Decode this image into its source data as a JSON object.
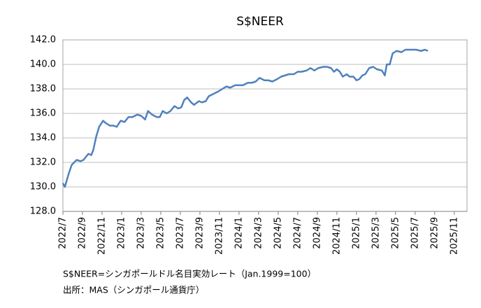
{
  "chart_data": {
    "type": "line",
    "title": "S$NEER",
    "notes": [
      "S$NEER=シンガポールドル名目実効レート（Jan.1999=100）",
      "出所：MAS（シンガポール通貨庁）"
    ],
    "x": [
      0,
      0.2,
      0.6,
      0.9,
      1.4,
      1.8,
      2.1,
      2.6,
      2.9,
      3.1,
      3.4,
      3.7,
      4.1,
      4.4,
      4.8,
      5.2,
      5.5,
      5.9,
      6.3,
      6.7,
      7.1,
      7.6,
      8,
      8.4,
      8.7,
      9.1,
      9.6,
      9.9,
      10.2,
      10.6,
      11,
      11.4,
      11.8,
      12.1,
      12.4,
      12.7,
      13.1,
      13.4,
      13.9,
      14.2,
      14.6,
      14.9,
      15.4,
      15.9,
      16.3,
      16.7,
      17.1,
      17.6,
      18,
      18.4,
      18.9,
      19.3,
      19.7,
      20.1,
      20.6,
      21,
      21.4,
      21.9,
      22.3,
      22.7,
      23.1,
      23.6,
      24,
      24.4,
      24.9,
      25.3,
      25.7,
      26.1,
      26.6,
      27,
      27.4,
      27.7,
      28,
      28.3,
      28.6,
      29,
      29.3,
      29.7,
      30,
      30.3,
      30.6,
      30.9,
      31.3,
      31.7,
      32.1,
      32.6,
      32.9,
      33.1,
      33.4,
      33.7,
      34.1,
      34.6,
      35,
      35.6,
      36.1,
      36.6,
      37,
      37.3
    ],
    "series": [
      {
        "name": "S$NEER",
        "color": "#4f81bd",
        "values": [
          130.3,
          130.0,
          131.1,
          131.8,
          132.2,
          132.1,
          132.2,
          132.7,
          132.6,
          133.0,
          134.1,
          134.9,
          135.4,
          135.2,
          135.0,
          135.0,
          134.9,
          135.4,
          135.3,
          135.7,
          135.7,
          135.9,
          135.8,
          135.5,
          136.2,
          135.9,
          135.7,
          135.7,
          136.2,
          136.0,
          136.2,
          136.6,
          136.4,
          136.5,
          137.1,
          137.3,
          136.9,
          136.7,
          137.0,
          136.9,
          137.0,
          137.4,
          137.6,
          137.8,
          138.0,
          138.2,
          138.1,
          138.3,
          138.3,
          138.3,
          138.5,
          138.5,
          138.6,
          138.9,
          138.7,
          138.7,
          138.6,
          138.8,
          139.0,
          139.1,
          139.2,
          139.2,
          139.4,
          139.4,
          139.5,
          139.7,
          139.5,
          139.7,
          139.8,
          139.8,
          139.7,
          139.4,
          139.6,
          139.4,
          139.0,
          139.2,
          139.0,
          139.0,
          138.7,
          138.8,
          139.1,
          139.2,
          139.7,
          139.8,
          139.6,
          139.5,
          139.1,
          140.0,
          140.0,
          140.9,
          141.1,
          141.0,
          141.2,
          141.2,
          141.2,
          141.1,
          141.2,
          141.1
        ]
      }
    ],
    "xlim": [
      0,
      41.3
    ],
    "xticks": [
      {
        "value": 0,
        "label": "2022/7"
      },
      {
        "value": 2,
        "label": "2022/9"
      },
      {
        "value": 4,
        "label": "2022/11"
      },
      {
        "value": 6,
        "label": "2023/1"
      },
      {
        "value": 8,
        "label": "2023/3"
      },
      {
        "value": 10,
        "label": "2023/5"
      },
      {
        "value": 12,
        "label": "2023/7"
      },
      {
        "value": 14,
        "label": "2023/9"
      },
      {
        "value": 16,
        "label": "2023/11"
      },
      {
        "value": 18,
        "label": "2024/1"
      },
      {
        "value": 20,
        "label": "2024/3"
      },
      {
        "value": 22,
        "label": "2024/5"
      },
      {
        "value": 24,
        "label": "2024/7"
      },
      {
        "value": 26,
        "label": "2024/9"
      },
      {
        "value": 28,
        "label": "2024/11"
      },
      {
        "value": 30,
        "label": "2025/1"
      },
      {
        "value": 32,
        "label": "2025/3"
      },
      {
        "value": 34,
        "label": "2025/5"
      },
      {
        "value": 36,
        "label": "2025/7"
      },
      {
        "value": 38,
        "label": "2025/9"
      },
      {
        "value": 40,
        "label": "2025/11"
      }
    ],
    "ylim": [
      128,
      142
    ],
    "yticks": [
      {
        "value": 128,
        "label": "128.0"
      },
      {
        "value": 130,
        "label": "130.0"
      },
      {
        "value": 132,
        "label": "132.0"
      },
      {
        "value": 134,
        "label": "134.0"
      },
      {
        "value": 136,
        "label": "136.0"
      },
      {
        "value": 138,
        "label": "138.0"
      },
      {
        "value": 140,
        "label": "140.0"
      },
      {
        "value": 142,
        "label": "142.0"
      }
    ],
    "grid": true
  }
}
